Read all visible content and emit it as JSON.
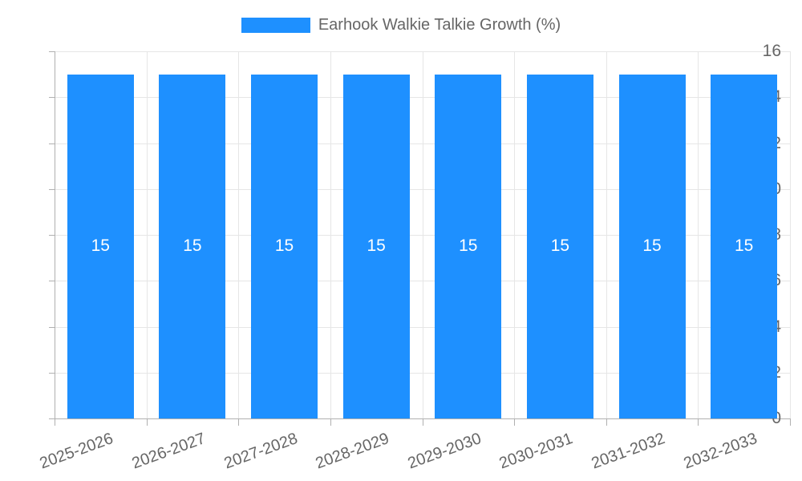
{
  "legend": {
    "label": "Earhook Walkie Talkie Growth (%)"
  },
  "chart_data": {
    "type": "bar",
    "title": "Earhook Walkie Talkie Growth (%)",
    "categories": [
      "2025-2026",
      "2026-2027",
      "2027-2028",
      "2028-2029",
      "2029-2030",
      "2030-2031",
      "2031-2032",
      "2032-2033"
    ],
    "values": [
      15,
      15,
      15,
      15,
      15,
      15,
      15,
      15
    ],
    "bar_value_labels": [
      "15",
      "15",
      "15",
      "15",
      "15",
      "15",
      "15",
      "15"
    ],
    "xlabel": "",
    "ylabel": "",
    "ylim": [
      0,
      16
    ],
    "ytick_step": 2,
    "ytick_labels": [
      "0",
      "2",
      "4",
      "6",
      "8",
      "10",
      "12",
      "14",
      "16"
    ],
    "grid": true,
    "legend_position": "top-center",
    "colors": {
      "bar": "#1e90ff",
      "grid": "#e6e6e6",
      "axis": "#b0b0b0",
      "tick_text": "#666666",
      "bar_label_text": "#ffffff",
      "background": "#ffffff"
    }
  }
}
